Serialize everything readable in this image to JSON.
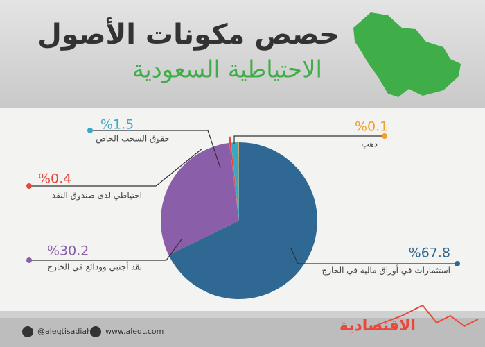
{
  "chart_data": {
    "type": "pie",
    "title": "حصص مكونات الأصول",
    "subtitle": "الاحتياطية السعودية",
    "categories": [
      "استثمارات في أوراق مالية في الخارج",
      "نقد أجنبي وودائع في الخارج",
      "احتياطي لدى صندوق النقد",
      "حقوق السحب الخاص",
      "ذهب"
    ],
    "values": [
      67.8,
      30.2,
      0.4,
      1.5,
      0.1
    ],
    "value_labels": [
      "%67.8",
      "%30.2",
      "%0.4",
      "%1.5",
      "%0.1"
    ],
    "colors": [
      "#2f6892",
      "#8a5ea8",
      "#e8483b",
      "#39a7c9",
      "#f0a02c"
    ],
    "footer": {
      "twitter": "@aleqtisadiah",
      "website": "www.aleqt.com",
      "logo": "الاقتصادية"
    }
  }
}
